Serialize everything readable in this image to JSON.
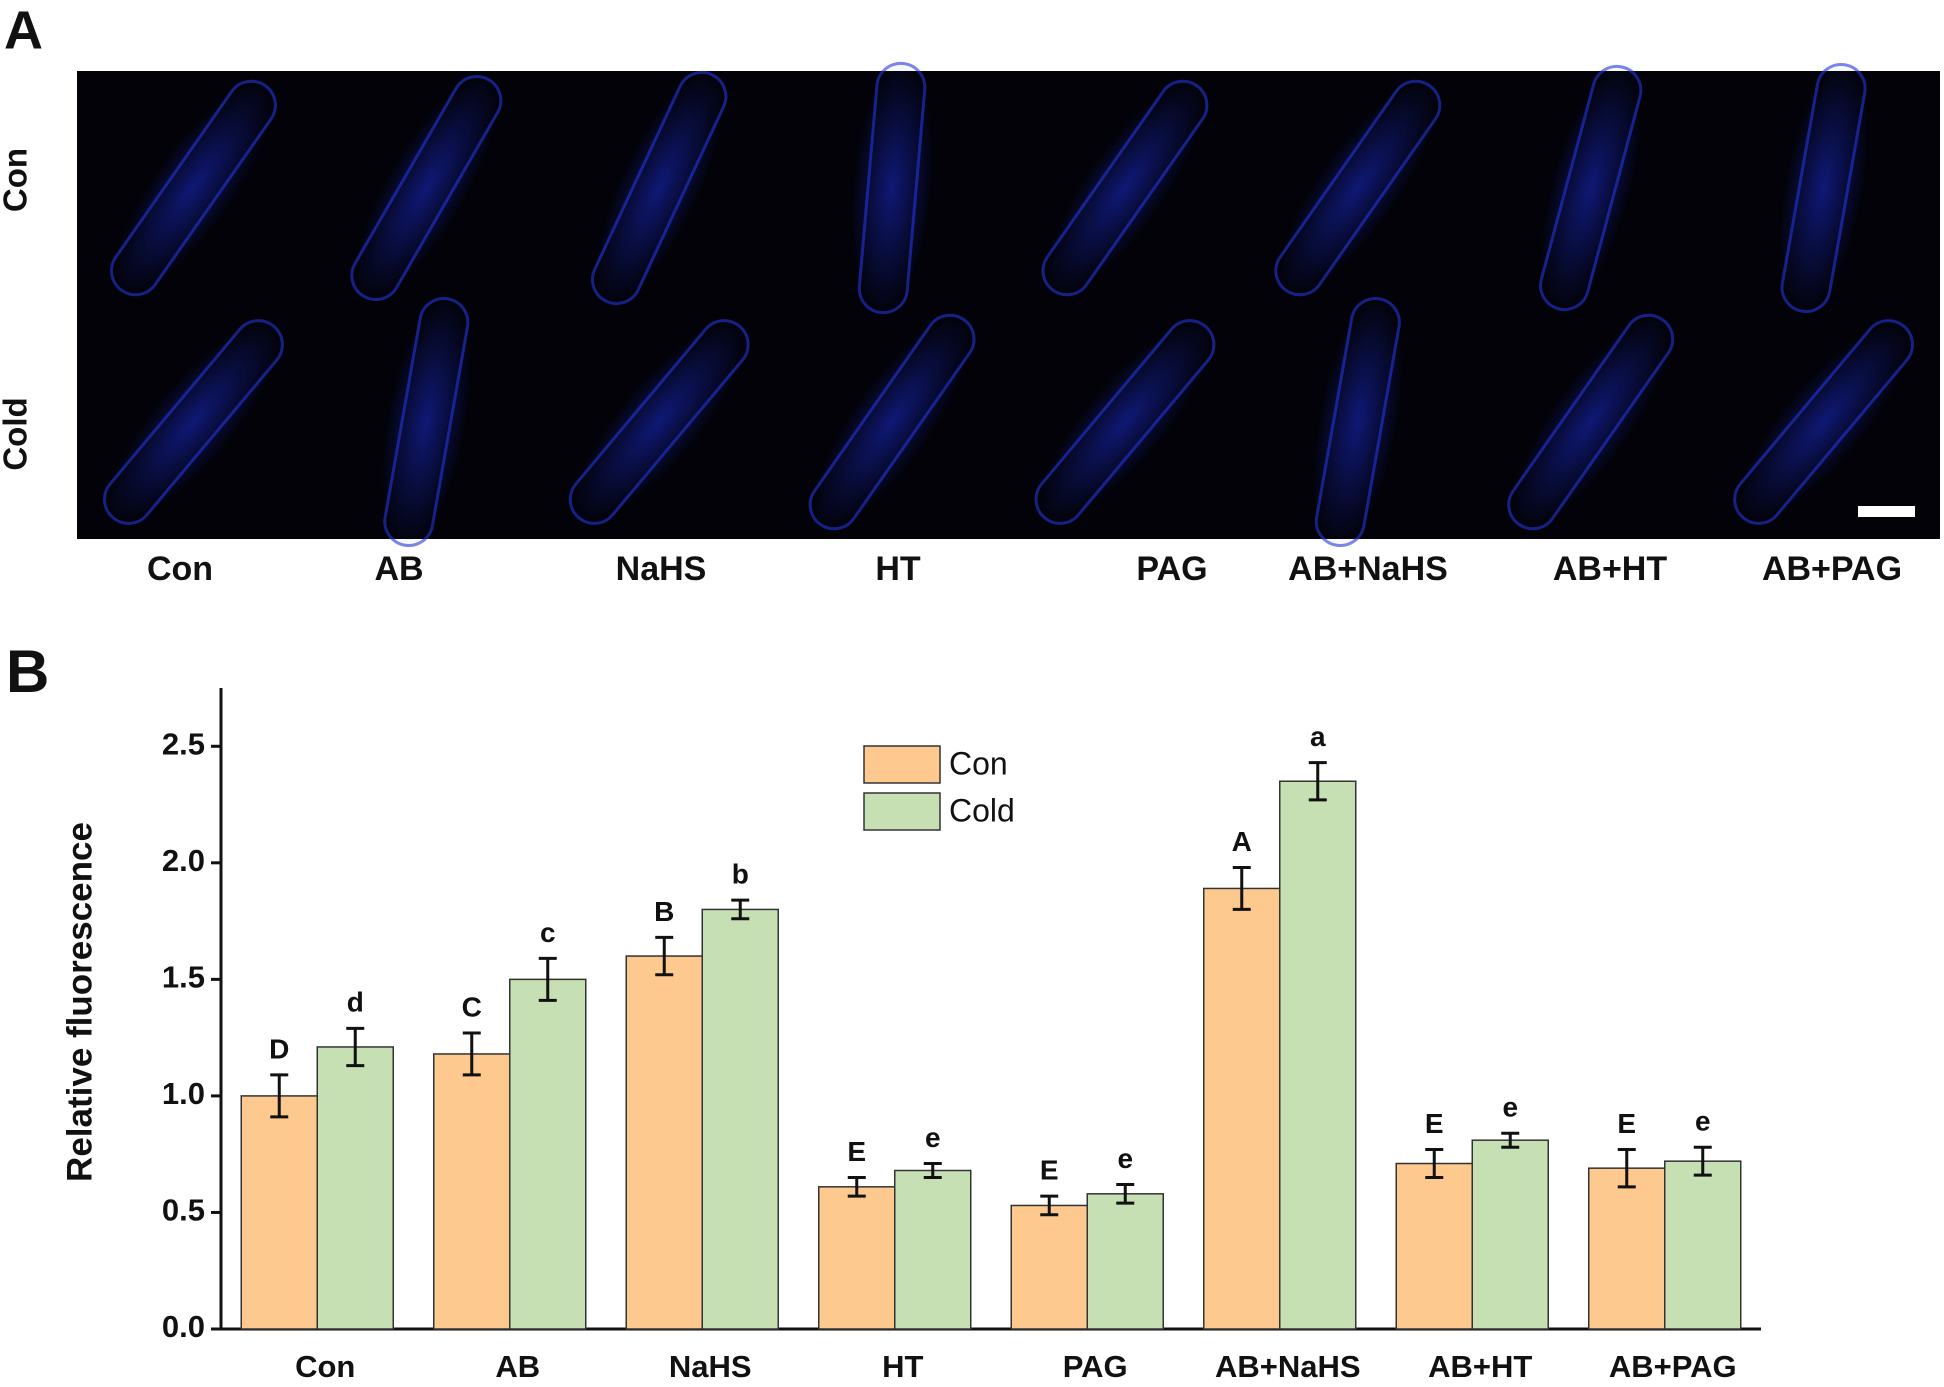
{
  "panel_a": {
    "label": "A",
    "row_labels": [
      "Con",
      "Cold"
    ],
    "column_labels": [
      "Con",
      "AB",
      "NaHS",
      "HT",
      "PAG",
      "AB+NaHS",
      "AB+HT",
      "AB+PAG"
    ]
  },
  "chart_data": {
    "type": "bar",
    "panel_label": "B",
    "ylabel": "Relative fluorescence",
    "categories": [
      "Con",
      "AB",
      "NaHS",
      "HT",
      "PAG",
      "AB+NaHS",
      "AB+HT",
      "AB+PAG"
    ],
    "series": [
      {
        "name": "Con",
        "color": "#fdc98f",
        "values": [
          1.0,
          1.18,
          1.6,
          0.61,
          0.53,
          1.89,
          0.71,
          0.69
        ],
        "errors": [
          0.09,
          0.09,
          0.08,
          0.04,
          0.04,
          0.09,
          0.06,
          0.08
        ],
        "letters": [
          "D",
          "C",
          "B",
          "E",
          "E",
          "A",
          "E",
          "E"
        ]
      },
      {
        "name": "Cold",
        "color": "#c6e0b4",
        "values": [
          1.21,
          1.5,
          1.8,
          0.68,
          0.58,
          2.35,
          0.81,
          0.72
        ],
        "errors": [
          0.08,
          0.09,
          0.04,
          0.03,
          0.04,
          0.08,
          0.03,
          0.06
        ],
        "letters": [
          "d",
          "c",
          "b",
          "e",
          "e",
          "a",
          "e",
          "e"
        ]
      }
    ],
    "ylim": [
      0,
      2.75
    ],
    "yticks": [
      {
        "value": 0,
        "label": "0.0"
      },
      0.5,
      {
        "value": 1,
        "label": "1.0"
      },
      1.5,
      {
        "value": 2,
        "label": "2.0"
      },
      2.5
    ],
    "legend": "top-center"
  }
}
